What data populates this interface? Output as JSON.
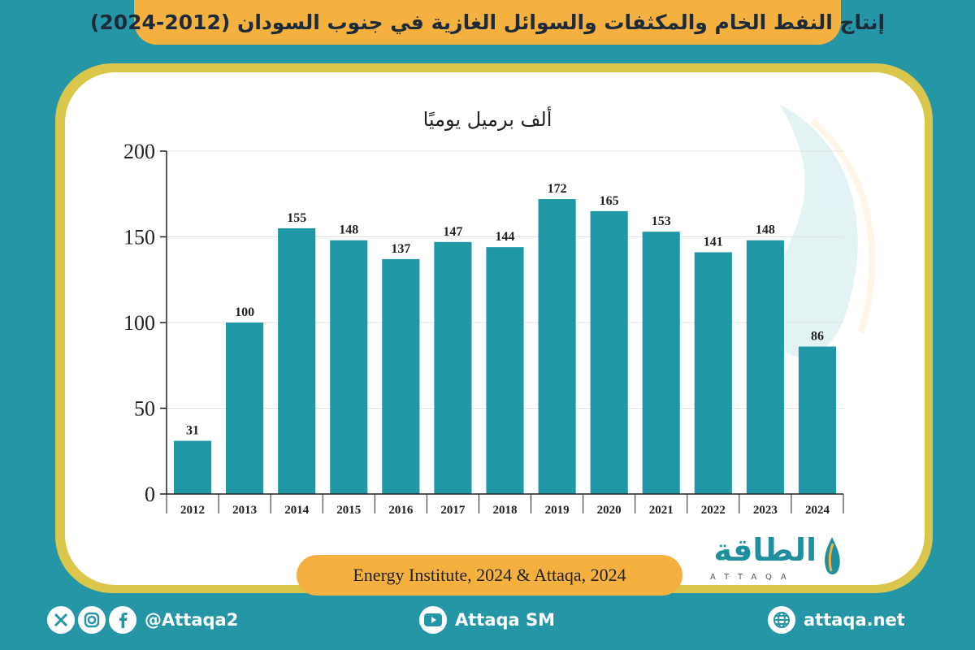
{
  "title": "إنتاج النفط الخام والمكثفات والسوائل الغازية في جنوب السودان (2012-2024)",
  "source": "Energy Institute, 2024 & Attaqa, 2024",
  "logo": {
    "arabic": "الطاقة",
    "latin": "ATTAQA"
  },
  "footer": {
    "social_handle": "@Attaqa2",
    "youtube": "Attaqa SM",
    "website": "attaqa.net"
  },
  "colors": {
    "background": "#2596a6",
    "bar": "#1f97a5",
    "title_bar": "#f5b13f",
    "card_border": "#d9c64a"
  },
  "icons": [
    "x-icon",
    "instagram-icon",
    "facebook-icon",
    "youtube-icon",
    "globe-icon"
  ],
  "chart_data": {
    "type": "bar",
    "ylabel": "ألف برميل يوميًا",
    "categories": [
      "2012",
      "2013",
      "2014",
      "2015",
      "2016",
      "2017",
      "2018",
      "2019",
      "2020",
      "2021",
      "2022",
      "2023",
      "2024"
    ],
    "values": [
      31,
      100,
      155,
      148,
      137,
      147,
      144,
      172,
      165,
      153,
      141,
      148,
      86
    ],
    "ylim": [
      0,
      200
    ],
    "yticks": [
      0,
      50,
      100,
      150,
      200
    ],
    "grid": true,
    "data_labels": true,
    "legend": "none"
  }
}
